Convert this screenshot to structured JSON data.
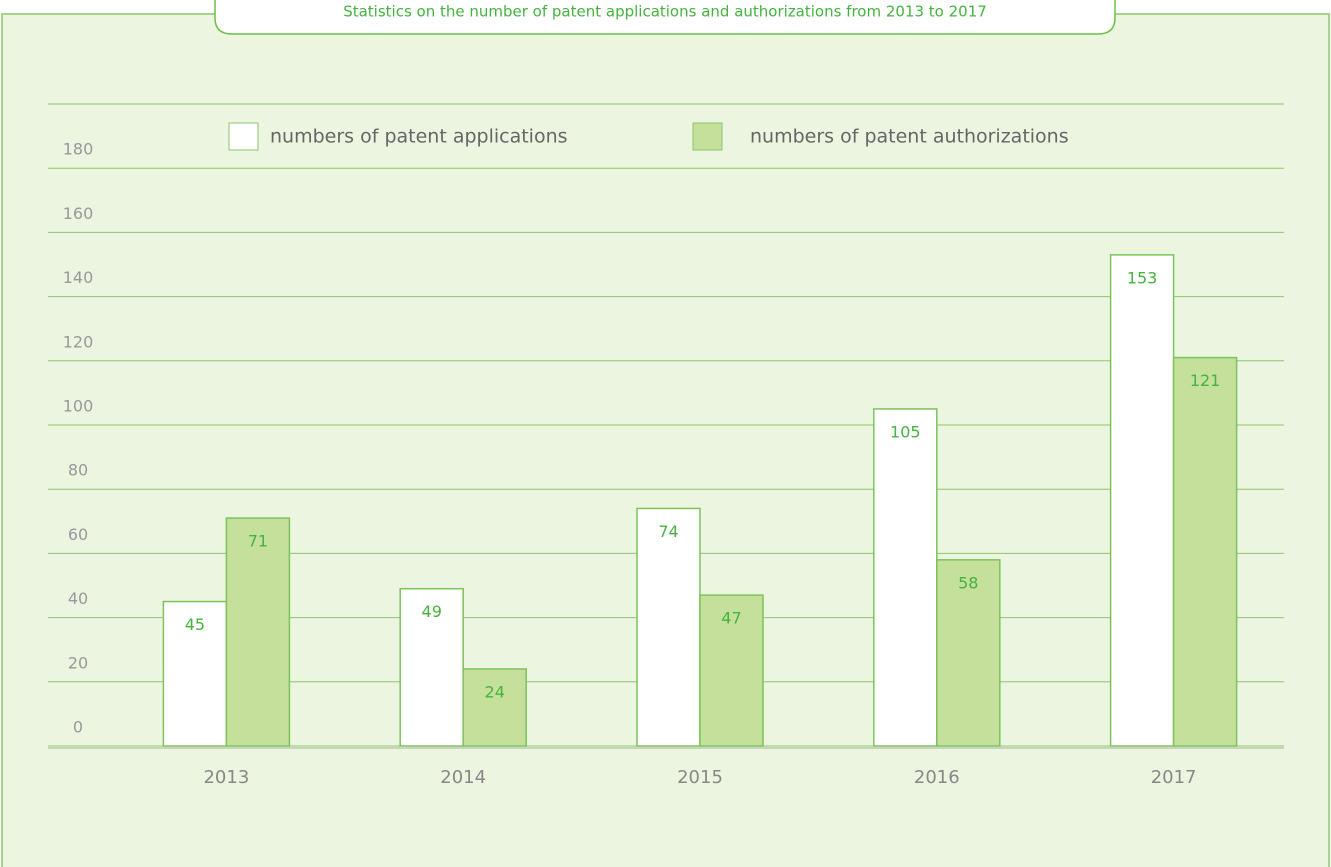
{
  "chart_data": {
    "type": "bar",
    "title": "Statistics on the number of patent applications and authorizations from 2013 to 2017",
    "categories": [
      "2013",
      "2014",
      "2015",
      "2016",
      "2017"
    ],
    "series": [
      {
        "name": "numbers of patent applications",
        "color": "#ffffff",
        "values": [
          45,
          49,
          74,
          105,
          153
        ]
      },
      {
        "name": "numbers of patent authorizations",
        "color": "#c5e09b",
        "values": [
          71,
          24,
          47,
          58,
          121
        ]
      }
    ],
    "ylim": [
      0,
      200
    ],
    "yticks": [
      0,
      20,
      40,
      60,
      80,
      100,
      120,
      140,
      160,
      180
    ],
    "grid": true,
    "legend": "top"
  }
}
